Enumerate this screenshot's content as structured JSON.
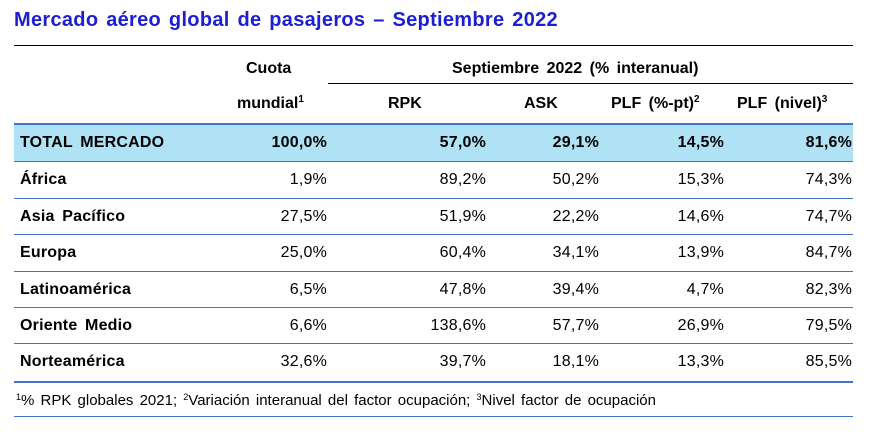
{
  "title": "Mercado aéreo global de pasajeros – Septiembre 2022",
  "header": {
    "cuota_line1": "Cuota",
    "cuota_line2": "mundial",
    "cuota_sup": "1",
    "period": "Septiembre 2022 (% interanual)",
    "col_rpk": "RPK",
    "col_ask": "ASK",
    "col_plf_pt": "PLF (%-pt)",
    "col_plf_pt_sup": "2",
    "col_plf_nivel": "PLF (nivel)",
    "col_plf_nivel_sup": "3"
  },
  "total": {
    "label": "TOTAL MERCADO",
    "cuota": "100,0%",
    "rpk": "57,0%",
    "ask": "29,1%",
    "plf_pt": "14,5%",
    "plf_nivel": "81,6%"
  },
  "rows": [
    {
      "label": "África",
      "cuota": "1,9%",
      "rpk": "89,2%",
      "ask": "50,2%",
      "plf_pt": "15,3%",
      "plf_nivel": "74,3%"
    },
    {
      "label": "Asia Pacífico",
      "cuota": "27,5%",
      "rpk": "51,9%",
      "ask": "22,2%",
      "plf_pt": "14,6%",
      "plf_nivel": "74,7%"
    },
    {
      "label": "Europa",
      "cuota": "25,0%",
      "rpk": "60,4%",
      "ask": "34,1%",
      "plf_pt": "13,9%",
      "plf_nivel": "84,7%"
    },
    {
      "label": "Latinoamérica",
      "cuota": "6,5%",
      "rpk": "47,8%",
      "ask": "39,4%",
      "plf_pt": "4,7%",
      "plf_nivel": "82,3%"
    },
    {
      "label": "Oriente Medio",
      "cuota": "6,6%",
      "rpk": "138,6%",
      "ask": "57,7%",
      "plf_pt": "26,9%",
      "plf_nivel": "79,5%"
    },
    {
      "label": "Norteamérica",
      "cuota": "32,6%",
      "rpk": "39,7%",
      "ask": "18,1%",
      "plf_pt": "13,3%",
      "plf_nivel": "85,5%"
    }
  ],
  "footnote": {
    "s1": "1",
    "t1": "% RPK globales 2021; ",
    "s2": "2",
    "t2": "Variación interanual del factor ocupación; ",
    "s3": "3",
    "t3": "Nivel factor de ocupación"
  },
  "colors": {
    "title": "#1c1fd1",
    "rule": "#4472c4",
    "total_band": "#aee2f4"
  }
}
